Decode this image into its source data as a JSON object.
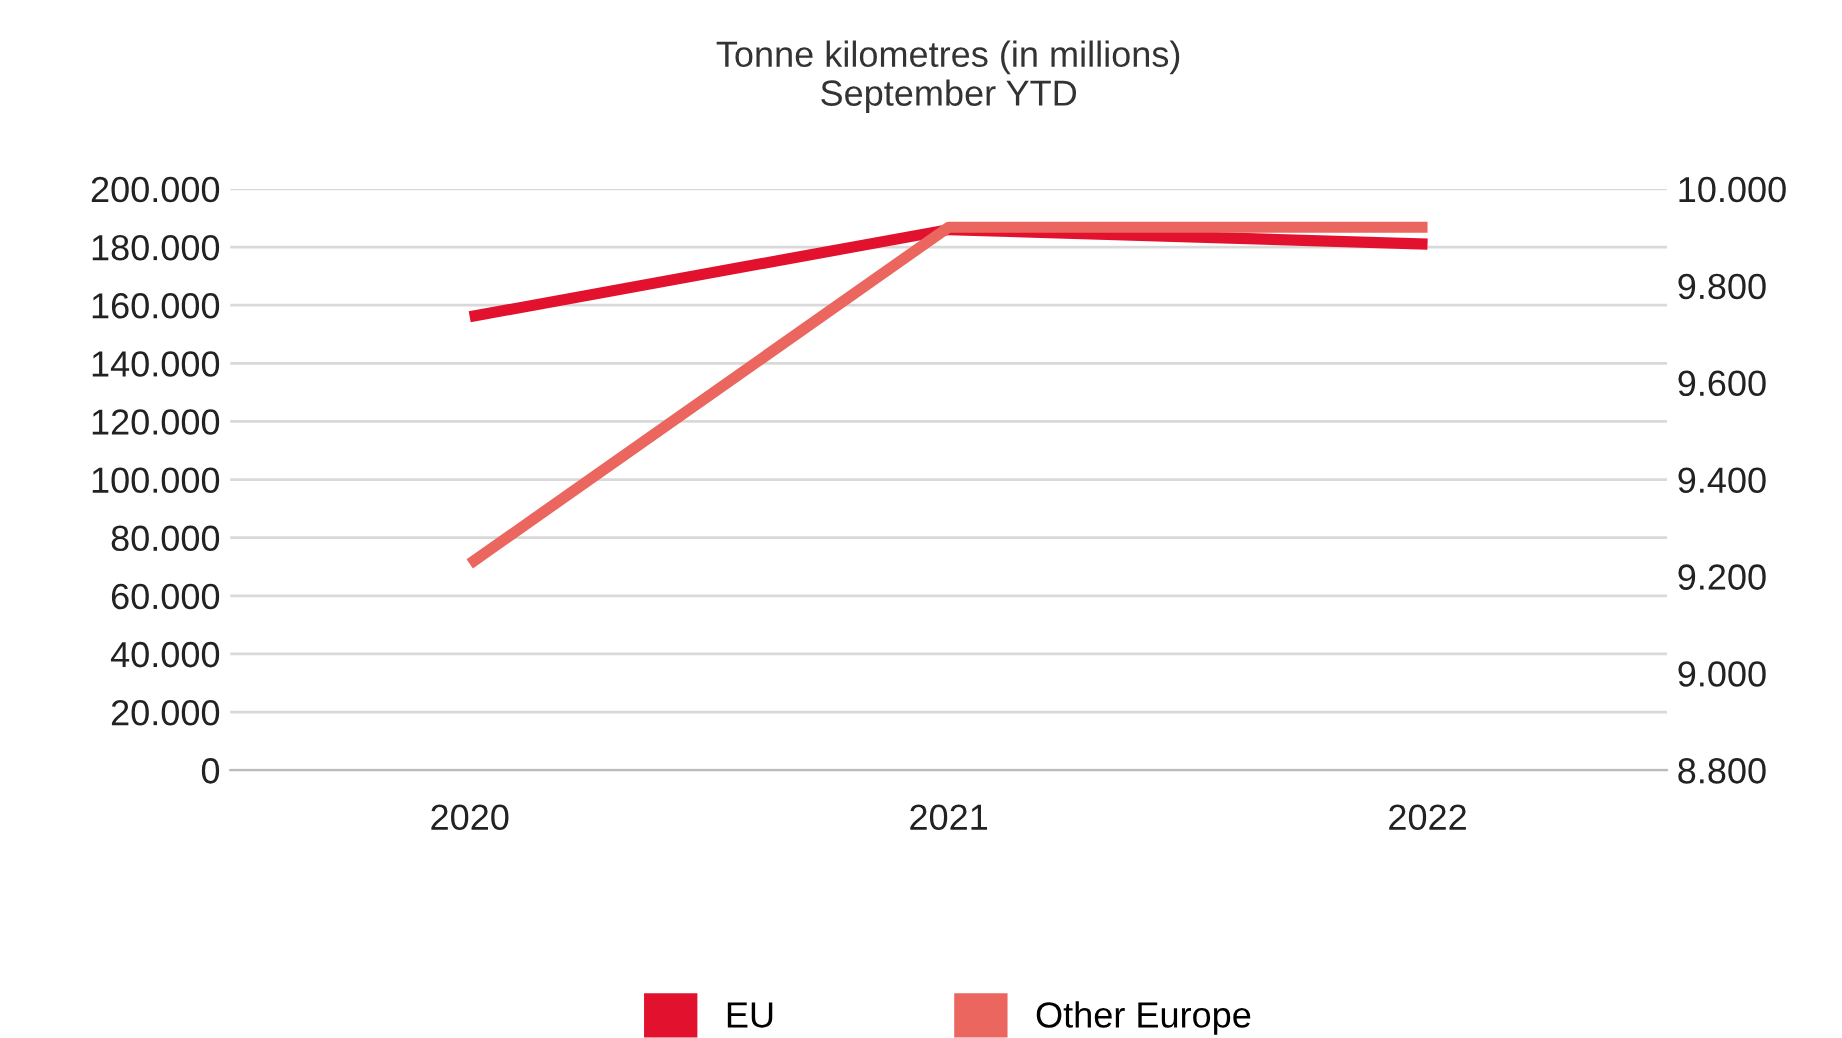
{
  "chart_data": {
    "type": "line",
    "title": "Tonne kilometres (in millions)\nSeptember YTD",
    "categories": [
      "2020",
      "2021",
      "2022"
    ],
    "series": [
      {
        "name": "EU",
        "color": "#e2122f",
        "values": [
          156000,
          186000,
          181000
        ]
      },
      {
        "name": "Other Europe",
        "color": "#eb665f",
        "values": [
          9226,
          9921,
          9921
        ],
        "axis": "y2"
      }
    ],
    "ylim": [
      0,
      200000
    ],
    "yticks": [
      {
        "value": 0,
        "label": "0"
      },
      {
        "value": 20000,
        "label": "20.000"
      },
      {
        "value": 40000,
        "label": "40.000"
      },
      {
        "value": 60000,
        "label": "60.000"
      },
      {
        "value": 80000,
        "label": "80.000"
      },
      {
        "value": 100000,
        "label": "100.000"
      },
      {
        "value": 120000,
        "label": "120.000"
      },
      {
        "value": 140000,
        "label": "140.000"
      },
      {
        "value": 160000,
        "label": "160.000"
      },
      {
        "value": 180000,
        "label": "180.000"
      },
      {
        "value": 200000,
        "label": "200.000"
      }
    ],
    "y2lim": [
      8800,
      10000
    ],
    "y2ticks": [
      {
        "value": 8800,
        "label": "8.800"
      },
      {
        "value": 9000,
        "label": "9.000"
      },
      {
        "value": 9200,
        "label": "9.200"
      },
      {
        "value": 9400,
        "label": "9.400"
      },
      {
        "value": 9600,
        "label": "9.600"
      },
      {
        "value": 9800,
        "label": "9.800"
      },
      {
        "value": 10000,
        "label": "10.000"
      }
    ],
    "grid": "y",
    "legend": "bottom",
    "marker": "none",
    "line_style": "solid"
  }
}
